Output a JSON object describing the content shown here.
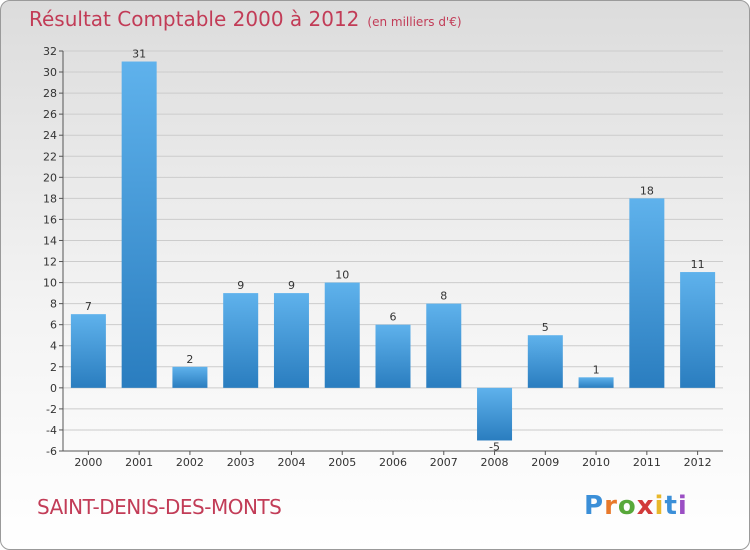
{
  "title": "Résultat Comptable 2000 à 2012",
  "unit": "(en milliers d'€)",
  "commune": "SAINT-DENIS-DES-MONTS",
  "logo": {
    "letters": [
      "P",
      "r",
      "o",
      "x",
      "i",
      "t",
      "i"
    ],
    "colors": [
      "#3b8fd8",
      "#e8792b",
      "#58a83a",
      "#d23a3a",
      "#e8b82b",
      "#3b8fd8",
      "#9b4fc4"
    ]
  },
  "colors": {
    "bar_top": "#5fb2ec",
    "bar_bottom": "#2a7dbf",
    "axis": "#555555",
    "grid": "#cccccc",
    "title": "#c23c57"
  },
  "chart_data": {
    "type": "bar",
    "title": "Résultat Comptable 2000 à 2012",
    "subtitle": "(en milliers d'€)",
    "categories": [
      "2000",
      "2001",
      "2002",
      "2003",
      "2004",
      "2005",
      "2006",
      "2007",
      "2008",
      "2009",
      "2010",
      "2011",
      "2012"
    ],
    "values": [
      7,
      31,
      2,
      9,
      9,
      10,
      6,
      8,
      -5,
      5,
      1,
      18,
      11
    ],
    "ylim": [
      -6,
      32
    ],
    "yticks": [
      -6,
      -4,
      -2,
      0,
      2,
      4,
      6,
      8,
      10,
      12,
      14,
      16,
      18,
      20,
      22,
      24,
      26,
      28,
      30,
      32
    ],
    "grid": true,
    "xlabel": "",
    "ylabel": ""
  }
}
